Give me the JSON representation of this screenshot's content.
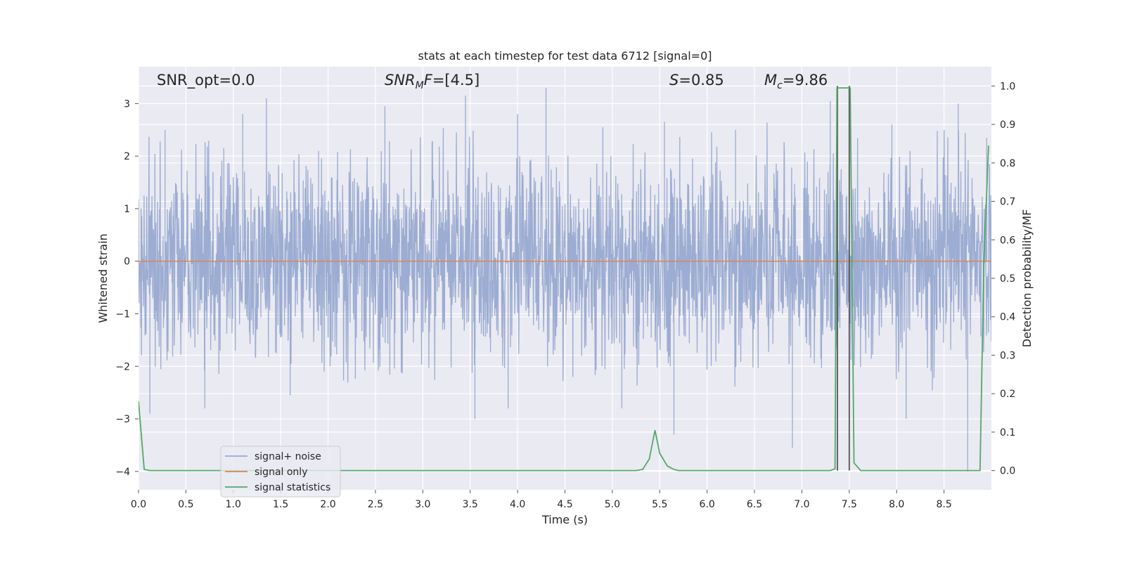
{
  "chart_data": {
    "type": "line",
    "title": "stats at each timestep for test data 6712 [signal=0]",
    "xlabel": "Time (s)",
    "ylabel_left": "Whitened strain",
    "ylabel_right": "Detection probability/MF",
    "xlim": [
      0.0,
      9.0
    ],
    "ylim_left": [
      -4.35,
      3.7
    ],
    "ylim_right": [
      -0.05,
      1.05
    ],
    "x_ticks": [
      "0.0",
      "0.5",
      "1.0",
      "1.5",
      "2.0",
      "2.5",
      "3.0",
      "3.5",
      "4.0",
      "4.5",
      "5.0",
      "5.5",
      "6.0",
      "6.5",
      "7.0",
      "7.5",
      "8.0",
      "8.5"
    ],
    "y_left_ticks": [
      "−4",
      "−3",
      "−2",
      "−1",
      "0",
      "1",
      "2",
      "3"
    ],
    "y_right_ticks": [
      "0.0",
      "0.1",
      "0.2",
      "0.3",
      "0.4",
      "0.5",
      "0.6",
      "0.7",
      "0.8",
      "0.9",
      "1.0"
    ],
    "annotations": {
      "snr_opt": "SNR_opt=0.0",
      "snr_mf_main": "SNR",
      "snr_mf_sub": "M",
      "snr_mf_rest": "F=[4.5]",
      "s_var": "S",
      "s_rest": "=0.85",
      "mc_main": "M",
      "mc_sub": "c",
      "mc_rest": "=9.86"
    },
    "grid": true,
    "legend_placement": "lower-left",
    "series": [
      {
        "name": "signal+ noise",
        "color": "#98a9d0",
        "description_kind": "dense noise band",
        "band_envelope_upper_approx": 2.2,
        "band_envelope_lower_approx": -1.9,
        "peaks": [
          [
            0.28,
            2.5
          ],
          [
            0.9,
            2.15
          ],
          [
            1.1,
            2.8
          ],
          [
            1.35,
            3.1
          ],
          [
            1.9,
            2.1
          ],
          [
            2.6,
            2.95
          ],
          [
            3.45,
            3.15
          ],
          [
            4.0,
            2.8
          ],
          [
            4.3,
            3.3
          ],
          [
            4.9,
            2.55
          ],
          [
            5.55,
            2.65
          ],
          [
            6.3,
            2.5
          ],
          [
            7.3,
            3.05
          ],
          [
            7.95,
            2.6
          ],
          [
            8.65,
            3.0
          ],
          [
            8.95,
            2.35
          ]
        ],
        "troughs": [
          [
            0.12,
            -2.9
          ],
          [
            0.7,
            -2.8
          ],
          [
            1.6,
            -2.55
          ],
          [
            3.55,
            -3.0
          ],
          [
            3.9,
            -2.8
          ],
          [
            5.1,
            -2.8
          ],
          [
            5.65,
            -3.3
          ],
          [
            6.9,
            -3.55
          ],
          [
            8.1,
            -3.0
          ],
          [
            8.75,
            -4.0
          ]
        ]
      },
      {
        "name": "signal only",
        "color": "#dd8452",
        "x": [
          0.0,
          9.0
        ],
        "y": [
          0.0,
          0.0
        ]
      },
      {
        "name": "signal statistics",
        "color": "#55a868",
        "x": [
          0.0,
          0.06,
          0.12,
          5.25,
          5.32,
          5.39,
          5.45,
          5.5,
          5.58,
          5.65,
          5.7,
          7.3,
          7.35,
          7.37,
          7.42,
          7.49,
          7.51,
          7.55,
          7.62,
          7.65,
          8.88,
          8.92,
          8.97
        ],
        "y": [
          0.18,
          0.003,
          0.0,
          0.0,
          0.003,
          0.03,
          0.105,
          0.045,
          0.012,
          0.003,
          0.0,
          0.0,
          0.005,
          0.995,
          0.995,
          0.995,
          0.995,
          0.02,
          0.0,
          0.0,
          0.0,
          0.54,
          0.845
        ]
      },
      {
        "name": "",
        "color": "#555555",
        "kind": "vertical markers",
        "x": [
          7.375,
          7.5
        ],
        "y_right": [
          0.0,
          1.0
        ]
      }
    ]
  }
}
